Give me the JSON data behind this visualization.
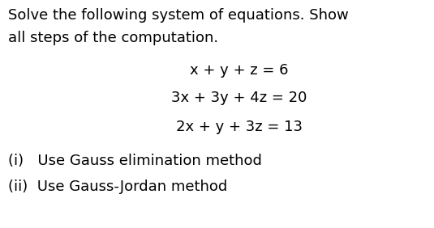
{
  "background_color": "#ffffff",
  "intro_line1": "Solve the following system of equations. Show",
  "intro_line2": "all steps of the computation.",
  "eq1": "x + y + z = 6",
  "eq2": "3x + 3y + 4z = 20",
  "eq3": "2x + y + 3z = 13",
  "item_i": "(i)   Use Gauss elimination method",
  "item_ii": "(ii)  Use Gauss-Jordan method",
  "text_color": "#000000",
  "font_size": 13.0,
  "fig_width": 5.35,
  "fig_height": 2.82,
  "dpi": 100
}
